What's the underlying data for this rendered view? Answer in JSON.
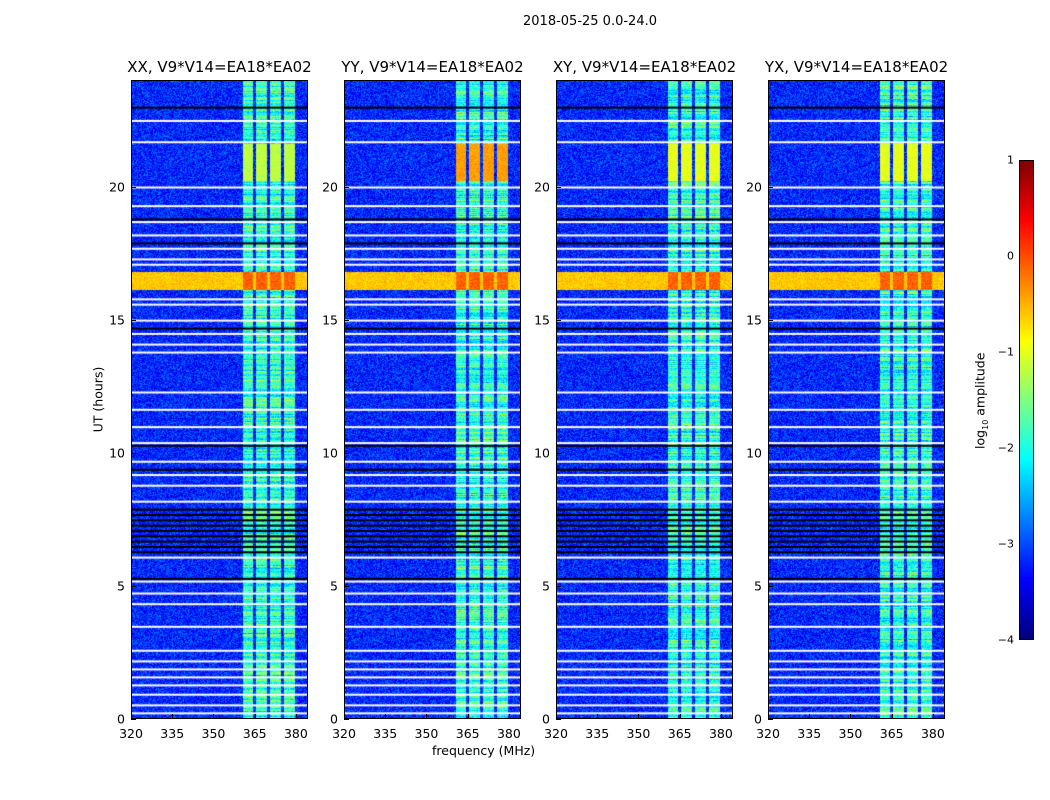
{
  "title": "2018-05-25 0.0-24.0",
  "chart_data": {
    "type": "heatmap",
    "title": "2018-05-25 0.0-24.0",
    "xlabel": "frequency (MHz)",
    "ylabel": "UT (hours)",
    "xlim": [
      320,
      384.4
    ],
    "ylim": [
      0,
      24
    ],
    "xticks": [
      "320",
      "335",
      "350",
      "365",
      "380"
    ],
    "xtick_values": [
      320,
      335,
      350,
      365,
      380
    ],
    "yticks": [
      "0",
      "5",
      "10",
      "15",
      "20"
    ],
    "ytick_values": [
      0,
      5,
      10,
      15,
      20
    ],
    "panels": [
      {
        "title": "XX, V9*V14=EA18*EA02",
        "rfi_burst_2021": -1.2
      },
      {
        "title": "YY, V9*V14=EA18*EA02",
        "rfi_burst_2021": -0.4
      },
      {
        "title": "XY, V9*V14=EA18*EA02",
        "rfi_burst_2021": -1.0
      },
      {
        "title": "YX, V9*V14=EA18*EA02",
        "rfi_burst_2021": -1.0
      }
    ],
    "colorbar": {
      "label_main": "log",
      "label_sub": "10",
      "label_rest": " amplitude",
      "range": [
        -4,
        1
      ],
      "ticks": [
        "1",
        "0",
        "−1",
        "−2",
        "−3",
        "−4"
      ],
      "tick_values": [
        1,
        0,
        -1,
        -2,
        -3,
        -4
      ],
      "colormap": "jet"
    },
    "background_log_amplitude": -3.2,
    "rfi_channels_mhz": [
      [
        360.8,
        364.5
      ],
      [
        365.5,
        369.5
      ],
      [
        370.5,
        374.5
      ],
      [
        375.5,
        379.8
      ]
    ],
    "rfi_log_amplitude": -1.9,
    "broadband_event_hours": [
      16.1,
      16.8
    ],
    "broadband_event_log_amplitude": -0.2,
    "flagged_hours_white": [
      22.5,
      21.7,
      20.0,
      19.3,
      18.7,
      18.2,
      17.7,
      17.3,
      17.1,
      15.8,
      15.6,
      15.0,
      14.5,
      14.1,
      13.8,
      12.3,
      11.65,
      11.0,
      10.4,
      9.7,
      9.2,
      8.8,
      8.2,
      6.1,
      5.2,
      4.75,
      4.35,
      3.5,
      2.6,
      2.2,
      1.9,
      1.6,
      1.3,
      0.95,
      0.55,
      0.25
    ],
    "zero_hours_black": [
      23.0,
      18.8,
      17.9,
      14.7,
      10.3,
      9.4,
      7.9,
      7.7,
      7.5,
      7.3,
      7.1,
      6.9,
      6.7,
      6.5,
      6.3,
      5.3
    ]
  }
}
